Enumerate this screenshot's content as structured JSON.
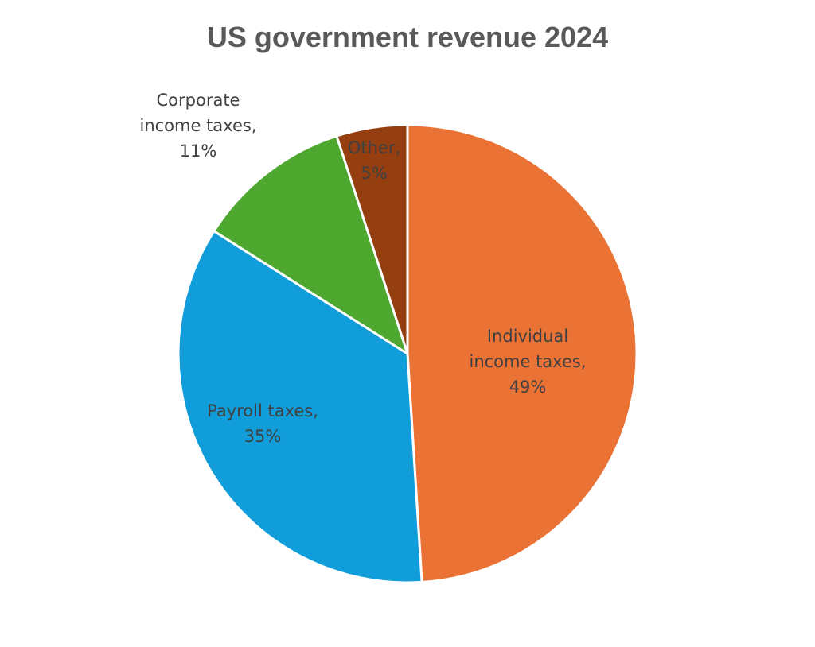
{
  "chart_data": {
    "type": "pie",
    "title": "US government revenue 2024",
    "slices": [
      {
        "name": "Individual income taxes",
        "value": 49,
        "label_lines": [
          "Individual",
          "income taxes,",
          "49%"
        ],
        "color": "#EA7235"
      },
      {
        "name": "Payroll taxes",
        "value": 35,
        "label_lines": [
          "Payroll taxes,",
          "35%"
        ],
        "color": "#109DD9"
      },
      {
        "name": "Corporate income taxes",
        "value": 11,
        "label_lines": [
          "Corporate",
          "income taxes,",
          "11%"
        ],
        "color": "#4EA72E"
      },
      {
        "name": "Other",
        "value": 5,
        "label_lines": [
          "Other,",
          "5%"
        ],
        "color": "#953F11"
      }
    ],
    "start_angle_deg": 0,
    "direction": "clockwise",
    "legend": "none"
  }
}
